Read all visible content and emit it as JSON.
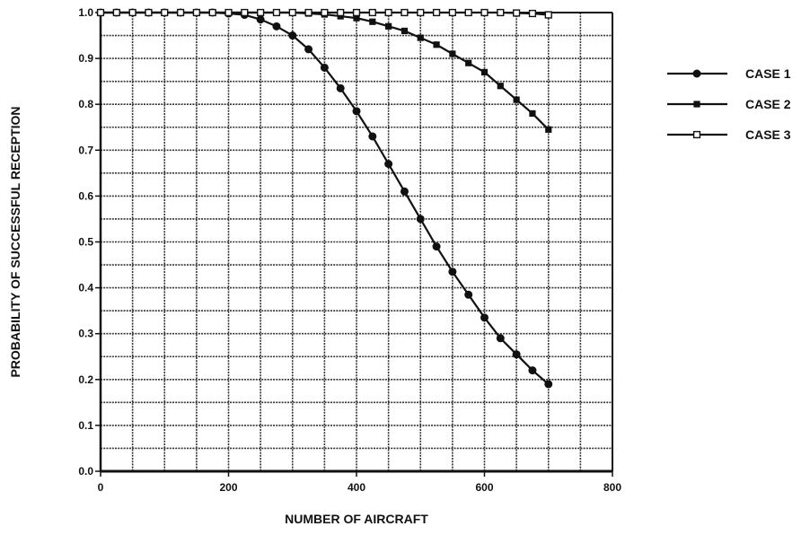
{
  "chart_data": {
    "type": "line",
    "title": "",
    "xlabel": "NUMBER OF AIRCRAFT",
    "ylabel": "PROBABILITY OF SUCCESSFUL RECEPTION",
    "xlim": [
      0,
      800
    ],
    "ylim": [
      0.0,
      1.0
    ],
    "x_ticks": [
      "0",
      "200",
      "400",
      "600",
      "800"
    ],
    "y_ticks": [
      "0.0",
      "0.1",
      "0.2",
      "0.3",
      "0.4",
      "0.5",
      "0.6",
      "0.7",
      "0.8",
      "0.9",
      "1.0"
    ],
    "grid": true,
    "legend_position": "right",
    "series": [
      {
        "name": "CASE 1",
        "marker": "filled-circle",
        "x": [
          0,
          25,
          50,
          75,
          100,
          125,
          150,
          175,
          200,
          225,
          250,
          275,
          300,
          325,
          350,
          375,
          400,
          425,
          450,
          475,
          500,
          525,
          550,
          575,
          600,
          625,
          650,
          675,
          700
        ],
        "y": [
          1.0,
          1.0,
          1.0,
          1.0,
          1.0,
          1.0,
          1.0,
          1.0,
          0.998,
          0.995,
          0.985,
          0.97,
          0.95,
          0.92,
          0.88,
          0.835,
          0.785,
          0.73,
          0.67,
          0.61,
          0.55,
          0.49,
          0.435,
          0.385,
          0.335,
          0.29,
          0.255,
          0.22,
          0.19
        ]
      },
      {
        "name": "CASE 2",
        "marker": "filled-square",
        "x": [
          0,
          25,
          50,
          75,
          100,
          125,
          150,
          175,
          200,
          225,
          250,
          275,
          300,
          325,
          350,
          375,
          400,
          425,
          450,
          475,
          500,
          525,
          550,
          575,
          600,
          625,
          650,
          675,
          700
        ],
        "y": [
          1.0,
          1.0,
          1.0,
          1.0,
          1.0,
          1.0,
          1.0,
          1.0,
          1.0,
          1.0,
          1.0,
          1.0,
          1.0,
          0.998,
          0.996,
          0.992,
          0.988,
          0.98,
          0.97,
          0.96,
          0.945,
          0.93,
          0.91,
          0.89,
          0.87,
          0.84,
          0.81,
          0.78,
          0.745
        ]
      },
      {
        "name": "CASE 3",
        "marker": "open-square",
        "x": [
          0,
          25,
          50,
          75,
          100,
          125,
          150,
          175,
          200,
          225,
          250,
          275,
          300,
          325,
          350,
          375,
          400,
          425,
          450,
          475,
          500,
          525,
          550,
          575,
          600,
          625,
          650,
          675,
          700
        ],
        "y": [
          1.0,
          1.0,
          1.0,
          1.0,
          1.0,
          1.0,
          1.0,
          1.0,
          1.0,
          1.0,
          1.0,
          1.0,
          1.0,
          1.0,
          1.0,
          1.0,
          1.0,
          1.0,
          1.0,
          1.0,
          1.0,
          1.0,
          1.0,
          1.0,
          1.0,
          1.0,
          0.999,
          0.998,
          0.995
        ]
      }
    ]
  }
}
